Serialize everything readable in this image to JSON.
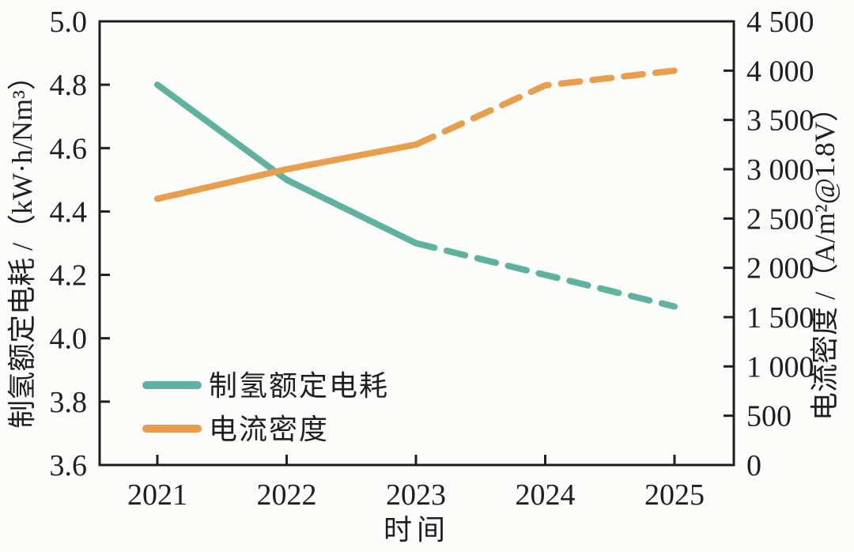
{
  "colors": {
    "teal": "#5fb2a0",
    "orange": "#e89e4a",
    "axis": "#1f1f1f",
    "text": "#1f1f1f",
    "background": "#fcfcfa"
  },
  "chart_data": {
    "type": "line",
    "title": "",
    "x": [
      2021,
      2022,
      2023,
      2024,
      2025
    ],
    "x_tick_labels": [
      "2021",
      "2022",
      "2023",
      "2024",
      "2025"
    ],
    "xlabel": "时间",
    "grid": false,
    "left_axis": {
      "label": "制氢额定电耗 /（kW·h/Nm³）",
      "range": [
        3.6,
        5.0
      ],
      "ticks": [
        3.6,
        3.8,
        4.0,
        4.2,
        4.4,
        4.6,
        4.8,
        5.0
      ],
      "tick_labels": [
        "3.6",
        "3.8",
        "4.0",
        "4.2",
        "4.4",
        "4.6",
        "4.8",
        "5.0"
      ]
    },
    "right_axis": {
      "label": "电流密度 /（A/m²@1.8V）",
      "range": [
        0,
        4500
      ],
      "ticks": [
        0,
        500,
        1000,
        1500,
        2000,
        2500,
        3000,
        3500,
        4000,
        4500
      ],
      "tick_labels": [
        "0",
        "500",
        "1 000",
        "1 500",
        "2 000",
        "2 500",
        "3 000",
        "3 500",
        "4 000",
        "4 500"
      ]
    },
    "series": [
      {
        "id": "power-consumption",
        "name": "制氢额定电耗",
        "axis": "left",
        "color": "#5fb2a0",
        "values": [
          4.8,
          4.5,
          4.3,
          4.2,
          4.1
        ],
        "solid_until_x": 2023,
        "style_after": "dashed"
      },
      {
        "id": "current-density",
        "name": "电流密度",
        "axis": "right",
        "color": "#e89e4a",
        "values": [
          2700,
          3000,
          3250,
          3850,
          4000
        ],
        "solid_until_x": 2023,
        "style_after": "dashed"
      }
    ],
    "legend": {
      "position": "lower-left",
      "entries": [
        {
          "label": "制氢额定电耗",
          "color": "#5fb2a0"
        },
        {
          "label": "电流密度",
          "color": "#e89e4a"
        }
      ]
    }
  }
}
